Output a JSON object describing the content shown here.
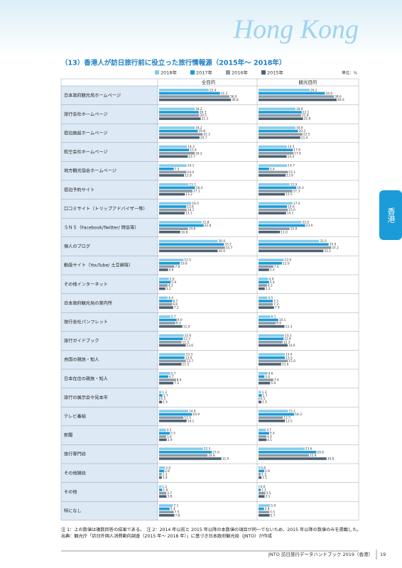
{
  "header": {
    "region": "Hong Kong",
    "tab": "香港"
  },
  "chart_data": {
    "type": "bar",
    "orientation": "horizontal",
    "title": "（13）香港人が訪日旅行前に役立った旅行情報源（2015年～ 2018年）",
    "unit": "単位：%",
    "legend": [
      {
        "name": "2018年",
        "color": "#86cbea"
      },
      {
        "name": "2017年",
        "color": "#1b9bd7"
      },
      {
        "name": "2016年",
        "color": "#8c9ba7"
      },
      {
        "name": "2015年",
        "color": "#4f6170"
      }
    ],
    "categories": [
      "日本政府観光局ホームページ",
      "旅行会社ホームページ",
      "宿泊施設ホームページ",
      "航空会社ホームページ",
      "地方観光協会ホームページ",
      "宿泊予約サイト",
      "口コミサイト（トリップアドバイザー等）",
      "ＳＮＳ（Facebook/Twitter/ 微信等）",
      "個人のブログ",
      "動画サイト（YouTube/ 土豆網等）",
      "その他インターネット",
      "日本政府観光局の案内所",
      "旅行会社パンフレット",
      "旅行ガイドブック",
      "自国の親族・知人",
      "日本在住の親族・知人",
      "旅行の展示会や見本市",
      "テレビ番組",
      "新聞",
      "旅行専門誌",
      "その他雑誌",
      "その他",
      "特になし"
    ],
    "panels": [
      {
        "title": "全目的",
        "series": [
          {
            "values": [
              25.4,
              18.2,
              18.2,
              14.3,
              14.1,
              15.1,
              16.5,
              21.8,
              30,
              12.5,
              5,
              4.4,
              5.7,
              12.6,
              13.3,
              5.7,
              1.2,
              14.9,
              3.5,
              22.5,
              3,
              1.2,
              7.1
            ],
            "value_labels": [
              "25.4",
              "18.2",
              "18.2",
              "14.3",
              "14.1",
              "15.1",
              "16.5",
              "21.8",
              "30.0",
              "12.5",
              "5.0",
              "4.4",
              "5.7",
              "12.6",
              "13.3",
              "5.7",
              "1.2",
              "14.9",
              "3.5",
              "22.5",
              "3.0",
              "1.2",
              "7.1"
            ]
          },
          {
            "values": [
              31.2,
              20.3,
              19.8,
              15.4,
              7.5,
              18.4,
              13.9,
              22.8,
              33.2,
              10.6,
              5.9,
              6.7,
              9,
              12.2,
              13,
              4.7,
              1.7,
              16.9,
              5.5,
              27,
              2.6,
              1.6,
              5.4
            ],
            "value_labels": [
              "31.2",
              "20.3",
              "19.8",
              "15.4",
              "7.5",
              "18.4",
              "13.9",
              "22.8",
              "33.2",
              "10.6",
              "5.9",
              "6.7",
              "9.0",
              "12.2",
              "13.0",
              "4.7",
              "1.7",
              "16.9",
              "5.5",
              "27.0",
              "2.6",
              "1.6",
              "5.4"
            ]
          },
          {
            "values": [
              36,
              20.5,
              22.3,
              18.2,
              14,
              17.1,
              14.1,
              14.8,
              33.7,
              7.8,
              4.3,
              6.6,
              8.3,
              11.5,
              13.7,
              8.6,
              0.5,
              12.5,
              3.6,
              24.8,
              1.3,
              3.7,
              7.5
            ],
            "value_labels": [
              "36.0",
              "20.5",
              "22.3",
              "18.2",
              "14.0",
              "17.1",
              "14.1",
              "14.8",
              "33.7",
              "7.8",
              "4.3",
              "6.6",
              "8.3",
              "11.5",
              "13.7",
              "8.6",
              "0.5",
              "12.5",
              "3.6",
              "24.8",
              "1.3",
              "3.7",
              "7.5"
            ]
          },
          {
            "values": [
              36.8,
              21.3,
              20.7,
              14.7,
              12.8,
              13.2,
              13.1,
              10.8,
              30,
              4.6,
              3.2,
              7.2,
              11.9,
              13.6,
              11.5,
              7.3,
              1.5,
              14.1,
              3.9,
              31.9,
              1.4,
              3.8,
              7.8
            ],
            "value_labels": [
              "36.8",
              "21.3",
              "20.7",
              "14.7",
              "12.8",
              "13.2",
              "13.1",
              "10.8",
              "30.0",
              "4.6",
              "3.2",
              "7.2",
              "11.9",
              "13.6",
              "11.5",
              "7.3",
              "1.5",
              "14.1",
              "3.9",
              "31.9",
              "1.4",
              "3.8",
              "7.8"
            ]
          }
        ]
      },
      {
        "title": "観光目的",
        "series": [
          {
            "values": [
              26.2,
              18.9,
              18.9,
              14.5,
              14.7,
              15.9,
              17.4,
              22,
              31,
              12.9,
              4.9,
              4.5,
              6.1,
              13.1,
              13.4,
              4.6,
              1.3,
              15.1,
              3.7,
              23.6,
              0.8,
              0.6,
              5.9
            ],
            "value_labels": [
              "26.2",
              "18.9",
              "18.9",
              "14.5",
              "14.7",
              "15.9",
              "17.4",
              "22.0",
              "31.0",
              "12.9",
              "4.9",
              "4.5",
              "6.1",
              "13.1",
              "13.4",
              "4.6",
              "1.3",
              "15.1",
              "3.7",
              "23.6",
              "0.8",
              "0.6",
              "5.9"
            ]
          },
          {
            "values": [
              34,
              22.1,
              20.2,
              17.6,
              5.4,
              19.3,
              14.6,
              23.9,
              35.9,
              12,
              5.4,
              7.3,
              10.1,
              12.8,
              13.5,
              3,
              1.7,
              18.3,
              5.4,
              29.6,
              2.9,
              1.1,
              2.8
            ],
            "value_labels": [
              "34.0",
              "22.1",
              "20.2",
              "17.6",
              "5.4",
              "19.3",
              "14.6",
              "23.9",
              "35.9",
              "12.0",
              "5.4",
              "7.3",
              "10.1",
              "12.8",
              "13.5",
              "3.0",
              "1.7",
              "18.3",
              "5.4",
              "29.6",
              "2.9",
              "1.1",
              "2.8"
            ]
          },
          {
            "values": [
              38.6,
              21.8,
              22.5,
              17.9,
              15.1,
              17.3,
              15,
              15.9,
              37.2,
              7.6,
              4.3,
              7.3,
              8.8,
              12.3,
              15,
              7.6,
              0.5,
              12.5,
              4,
              25.8,
              1.2,
              3.5,
              5.5
            ],
            "value_labels": [
              "38.6",
              "21.8",
              "22.5",
              "17.9",
              "15.1",
              "17.3",
              "15.0",
              "15.9",
              "37.2",
              "7.6",
              "4.3",
              "7.3",
              "8.8",
              "12.3",
              "15.0",
              "7.6",
              "0.5",
              "12.5",
              "4.0",
              "25.8",
              "1.2",
              "3.5",
              "5.5"
            ]
          },
          {
            "values": [
              40,
              22.8,
              21.4,
              14.4,
              13.9,
              13.5,
              14.1,
              11,
              33.2,
              5.4,
              3.2,
              7.9,
              13.3,
              14.9,
              11.6,
              5.9,
              1.5,
              13.5,
              4.1,
              34.8,
              1.5,
              3.1,
              5.7
            ],
            "value_labels": [
              "40.0",
              "22.8",
              "21.4",
              "14.4",
              "13.9",
              "13.5",
              "14.1",
              "11.0",
              "33.2",
              "5.4",
              "3.2",
              "7.9",
              "13.3",
              "14.9",
              "11.6",
              "5.9",
              "1.5",
              "13.5",
              "4.1",
              "34.8",
              "1.5",
              "3.1",
              "5.7"
            ]
          }
        ]
      }
    ]
  },
  "footnotes": [
    "注 1：上の数値は複数回答の結果である。　注 2：2014 年以前と 2015 年以降の本数値の項目が同一でないため、2015 年以降の数値のみを掲載した。　出典：観光庁「訪日外国人消費動向調査（2015 年～ 2018 年）」に基づき日本政府観光局（JNTO）が作成"
  ],
  "footer": {
    "book": "JNTO 訪日旅行データハンドブック 2019（香港）",
    "page": "19"
  }
}
